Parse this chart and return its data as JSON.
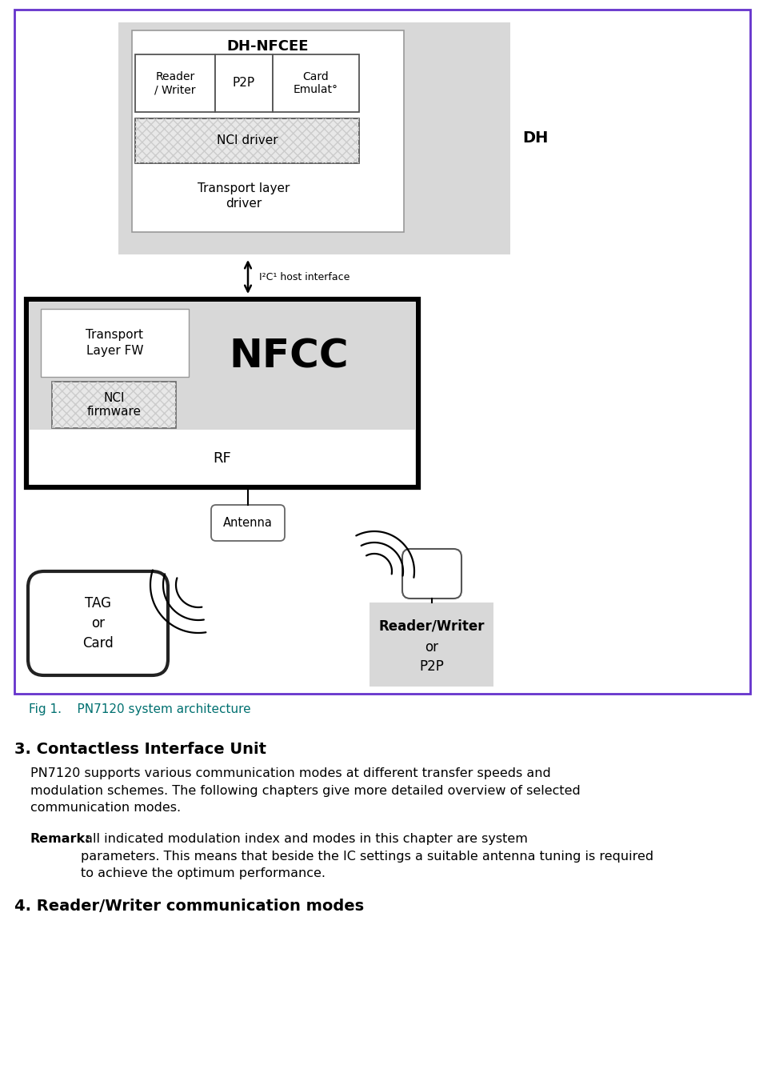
{
  "fig_width": 9.69,
  "fig_height": 13.31,
  "bg_color": "#ffffff",
  "border_color": "#6633cc",
  "fig_caption": "Fig 1.    PN7120 system architecture",
  "fig_caption_color": "#007070",
  "section3_title": "3. Contactless Interface Unit",
  "section3_body1": "PN7120 supports various communication modes at different transfer speeds and\nmodulation schemes. The following chapters give more detailed overview of selected\ncommunication modes.",
  "section3_remark_bold": "Remark:",
  "section3_remark_rest": " all indicated modulation index and modes in this chapter are system\nparameters. This means that beside the IC settings a suitable antenna tuning is required\nto achieve the optimum performance.",
  "section4_title": "4. Reader/Writer communication modes",
  "dh_nfcee_label": "DH-NFCEE",
  "dh_label": "DH",
  "nfcc_label": "NFCC",
  "reader_writer_label": "Reader\n/ Writer",
  "p2p_label": "P2P",
  "card_emul_label": "Card\nEmulat°",
  "nci_driver_label": "NCI driver",
  "transport_layer_driver_label": "Transport layer\ndriver",
  "transport_layer_fw_label": "Transport\nLayer FW",
  "nci_firmware_label": "NCI\nfirmware",
  "rf_label": "RF",
  "antenna_label": "Antenna",
  "tag_label": "TAG\nor\nCard",
  "rw_line1": "Reader/Writer",
  "rw_line2": "or",
  "rw_line3": "P2P",
  "i2c_label": "I²C¹ host interface",
  "light_gray": "#d8d8d8",
  "white": "#ffffff",
  "black": "#000000"
}
